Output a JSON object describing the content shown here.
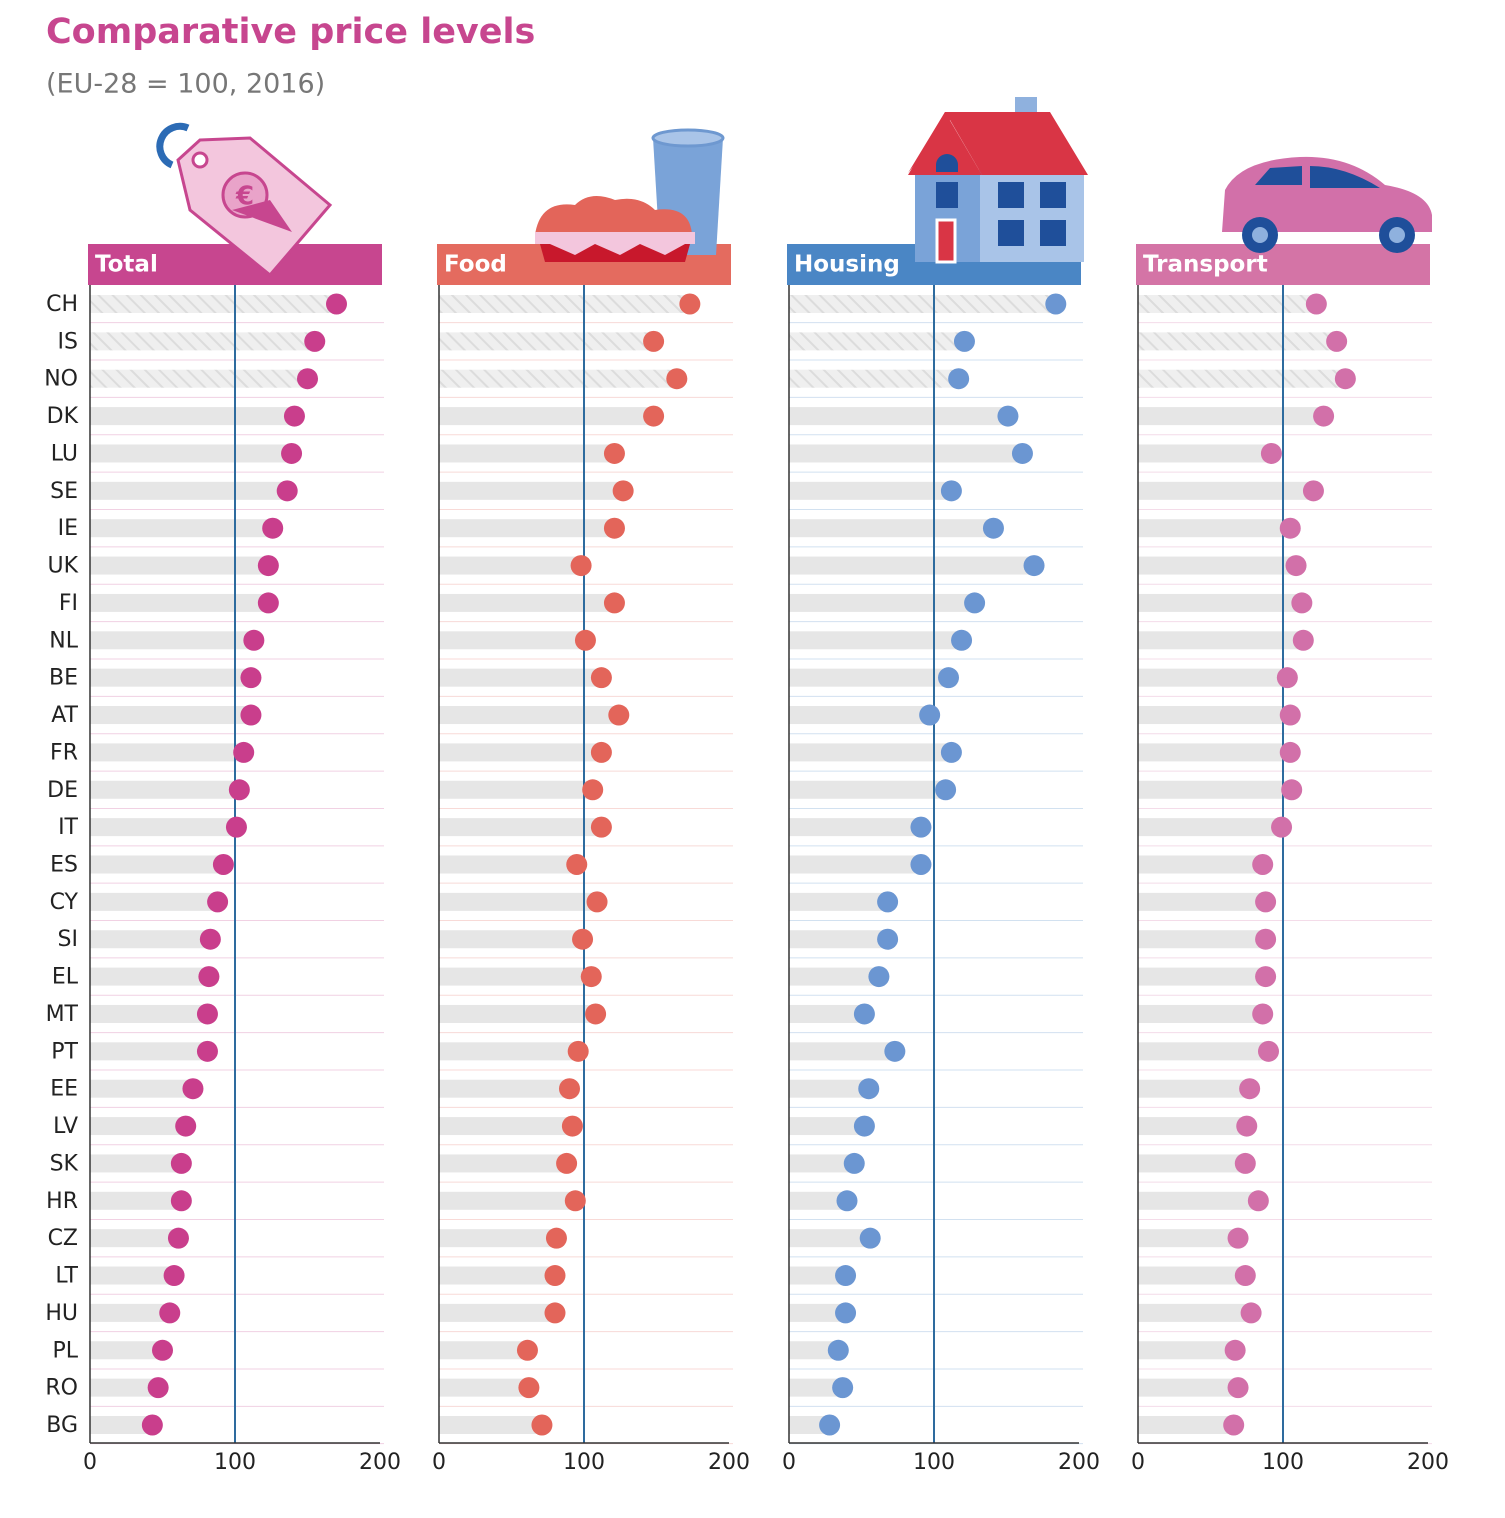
{
  "title": "Comparative price levels",
  "subtitle": "(EU-28 = 100, 2016)",
  "chart_data": [
    {
      "type": "dot",
      "title": "Total",
      "color": "#c93e8c",
      "header_color": "#c7468f",
      "categories": [
        "CH",
        "IS",
        "NO",
        "DK",
        "LU",
        "SE",
        "IE",
        "UK",
        "FI",
        "NL",
        "BE",
        "AT",
        "FR",
        "DE",
        "IT",
        "ES",
        "CY",
        "SI",
        "EL",
        "MT",
        "PT",
        "EE",
        "LV",
        "SK",
        "HR",
        "CZ",
        "LT",
        "HU",
        "PL",
        "RO",
        "BG"
      ],
      "values": [
        170,
        155,
        150,
        141,
        139,
        136,
        126,
        123,
        123,
        113,
        111,
        111,
        106,
        103,
        101,
        92,
        88,
        83,
        82,
        81,
        81,
        71,
        66,
        63,
        63,
        61,
        58,
        55,
        50,
        47,
        43
      ],
      "xlim": [
        0,
        200
      ],
      "xticks": [
        0,
        100,
        200
      ]
    },
    {
      "type": "dot",
      "title": "Food",
      "color": "#e3655a",
      "header_color": "#e46b5f",
      "values": [
        173,
        148,
        164,
        148,
        121,
        127,
        121,
        98,
        121,
        101,
        112,
        124,
        112,
        106,
        112,
        95,
        109,
        99,
        105,
        108,
        96,
        90,
        92,
        88,
        94,
        81,
        80,
        80,
        61,
        62,
        71
      ],
      "xlim": [
        0,
        200
      ],
      "xticks": [
        0,
        100,
        200
      ]
    },
    {
      "type": "dot",
      "title": "Housing",
      "color": "#6b96d2",
      "header_color": "#4a86c5",
      "values": [
        184,
        121,
        117,
        151,
        161,
        112,
        141,
        169,
        128,
        119,
        110,
        97,
        112,
        108,
        91,
        91,
        68,
        68,
        62,
        52,
        73,
        55,
        52,
        45,
        40,
        56,
        39,
        39,
        34,
        37,
        28
      ],
      "xlim": [
        0,
        200
      ],
      "xticks": [
        0,
        100,
        200
      ]
    },
    {
      "type": "dot",
      "title": "Transport",
      "color": "#d270a9",
      "header_color": "#d474a6",
      "values": [
        123,
        137,
        143,
        128,
        92,
        121,
        105,
        109,
        113,
        114,
        103,
        105,
        105,
        106,
        99,
        86,
        88,
        88,
        88,
        86,
        90,
        77,
        75,
        74,
        83,
        69,
        74,
        78,
        67,
        69,
        66
      ],
      "xlim": [
        0,
        200
      ],
      "xticks": [
        0,
        100,
        200
      ]
    }
  ]
}
